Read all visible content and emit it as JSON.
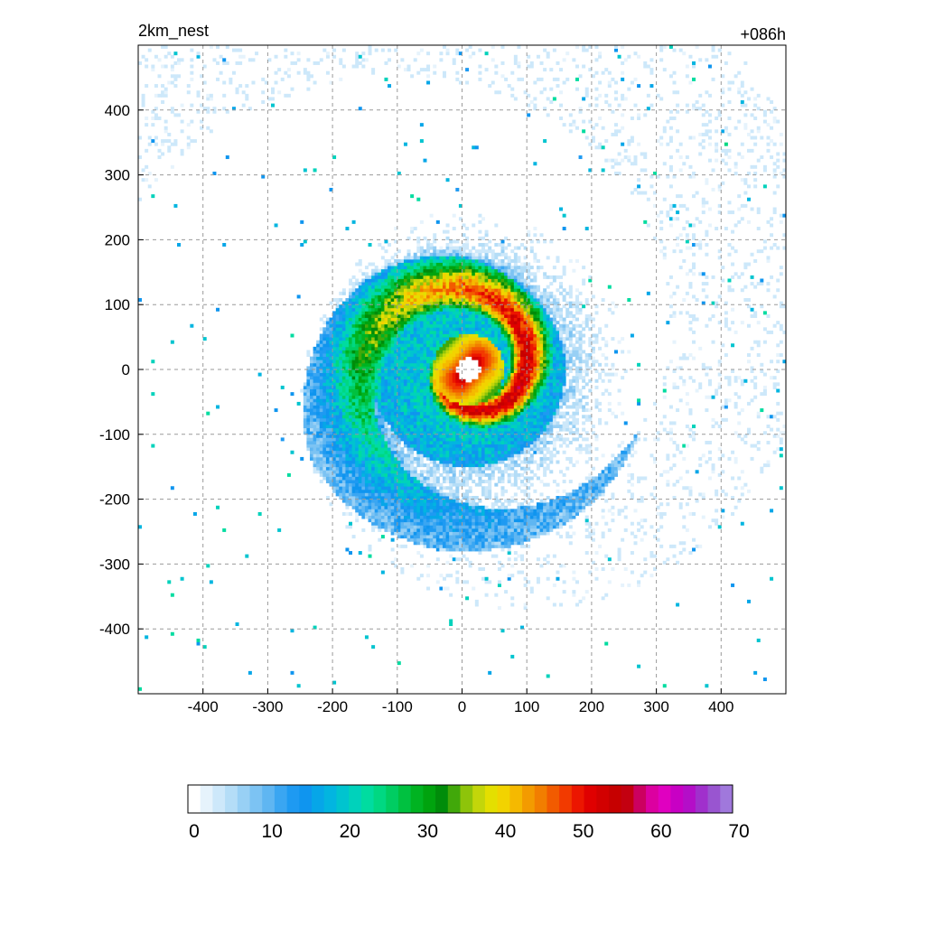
{
  "title_left": "2km_nest",
  "title_right": "+086h",
  "chart_data": {
    "type": "heatmap",
    "description_units": "",
    "xlim": [
      -500,
      500
    ],
    "ylim": [
      -500,
      500
    ],
    "xticks": [
      -400,
      -300,
      -200,
      -100,
      0,
      100,
      200,
      300,
      400
    ],
    "yticks": [
      400,
      300,
      200,
      100,
      0,
      -100,
      -200,
      -300,
      -400
    ],
    "xtick_labels": [
      "-400",
      "-300",
      "-200",
      "-100",
      "0",
      "100",
      "200",
      "300",
      "400"
    ],
    "ytick_labels": [
      "400",
      "300",
      "200",
      "100",
      "0",
      "-100",
      "-200",
      "-300",
      "-400"
    ],
    "grid": true,
    "field": {
      "center": [
        10,
        0
      ],
      "eye_radius": 18,
      "eyewall_peak": 50,
      "feature": "spiral reflectivity bands around tropical cyclone eye"
    },
    "colorbar": {
      "min": 0,
      "max": 70,
      "ticks": [
        0,
        10,
        20,
        30,
        40,
        50,
        60,
        70
      ],
      "tick_labels": [
        "0",
        "10",
        "20",
        "30",
        "40",
        "50",
        "60",
        "70"
      ],
      "colors": [
        "#ffffff",
        "#e6f3fc",
        "#cde8fa",
        "#b4ddf7",
        "#98d0f5",
        "#7cc3f3",
        "#5fb6f2",
        "#3aa6f2",
        "#1e9af2",
        "#0f95ef",
        "#06a6e8",
        "#02b5e0",
        "#00c4cf",
        "#00d2bb",
        "#00dca0",
        "#00d882",
        "#00cd62",
        "#00c140",
        "#00b321",
        "#00a30e",
        "#008c0a",
        "#41a80a",
        "#8ec40a",
        "#c3d60a",
        "#e4df00",
        "#f2d300",
        "#f5b900",
        "#f39b00",
        "#f27e00",
        "#f25b00",
        "#f23a00",
        "#ec1600",
        "#e00000",
        "#d20000",
        "#c60000",
        "#c30010",
        "#cc0060",
        "#dc00a0",
        "#e000c0",
        "#c800c4",
        "#b40ec8",
        "#a030cc",
        "#9955d0",
        "#a078dc"
      ]
    }
  }
}
